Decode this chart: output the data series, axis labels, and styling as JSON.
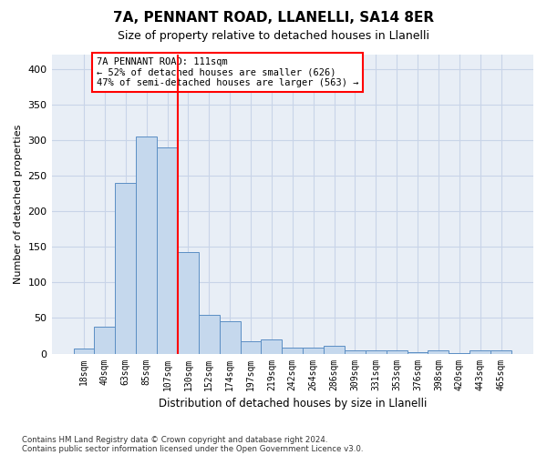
{
  "title": "7A, PENNANT ROAD, LLANELLI, SA14 8ER",
  "subtitle": "Size of property relative to detached houses in Llanelli",
  "xlabel": "Distribution of detached houses by size in Llanelli",
  "ylabel": "Number of detached properties",
  "categories": [
    "18sqm",
    "40sqm",
    "63sqm",
    "85sqm",
    "107sqm",
    "130sqm",
    "152sqm",
    "174sqm",
    "197sqm",
    "219sqm",
    "242sqm",
    "264sqm",
    "286sqm",
    "309sqm",
    "331sqm",
    "353sqm",
    "376sqm",
    "398sqm",
    "420sqm",
    "443sqm",
    "465sqm"
  ],
  "bar_heights": [
    7,
    38,
    240,
    305,
    290,
    143,
    55,
    45,
    17,
    20,
    8,
    8,
    11,
    5,
    4,
    4,
    2,
    4,
    1,
    5,
    5
  ],
  "bar_color": "#c5d8ed",
  "bar_edge_color": "#5b8ec4",
  "grid_color": "#c8d4e8",
  "background_color": "#e8eef6",
  "red_line_x": 4.5,
  "annotation_text": "7A PENNANT ROAD: 111sqm\n← 52% of detached houses are smaller (626)\n47% of semi-detached houses are larger (563) →",
  "footer1": "Contains HM Land Registry data © Crown copyright and database right 2024.",
  "footer2": "Contains public sector information licensed under the Open Government Licence v3.0.",
  "ylim": [
    0,
    420
  ],
  "yticks": [
    0,
    50,
    100,
    150,
    200,
    250,
    300,
    350,
    400
  ]
}
